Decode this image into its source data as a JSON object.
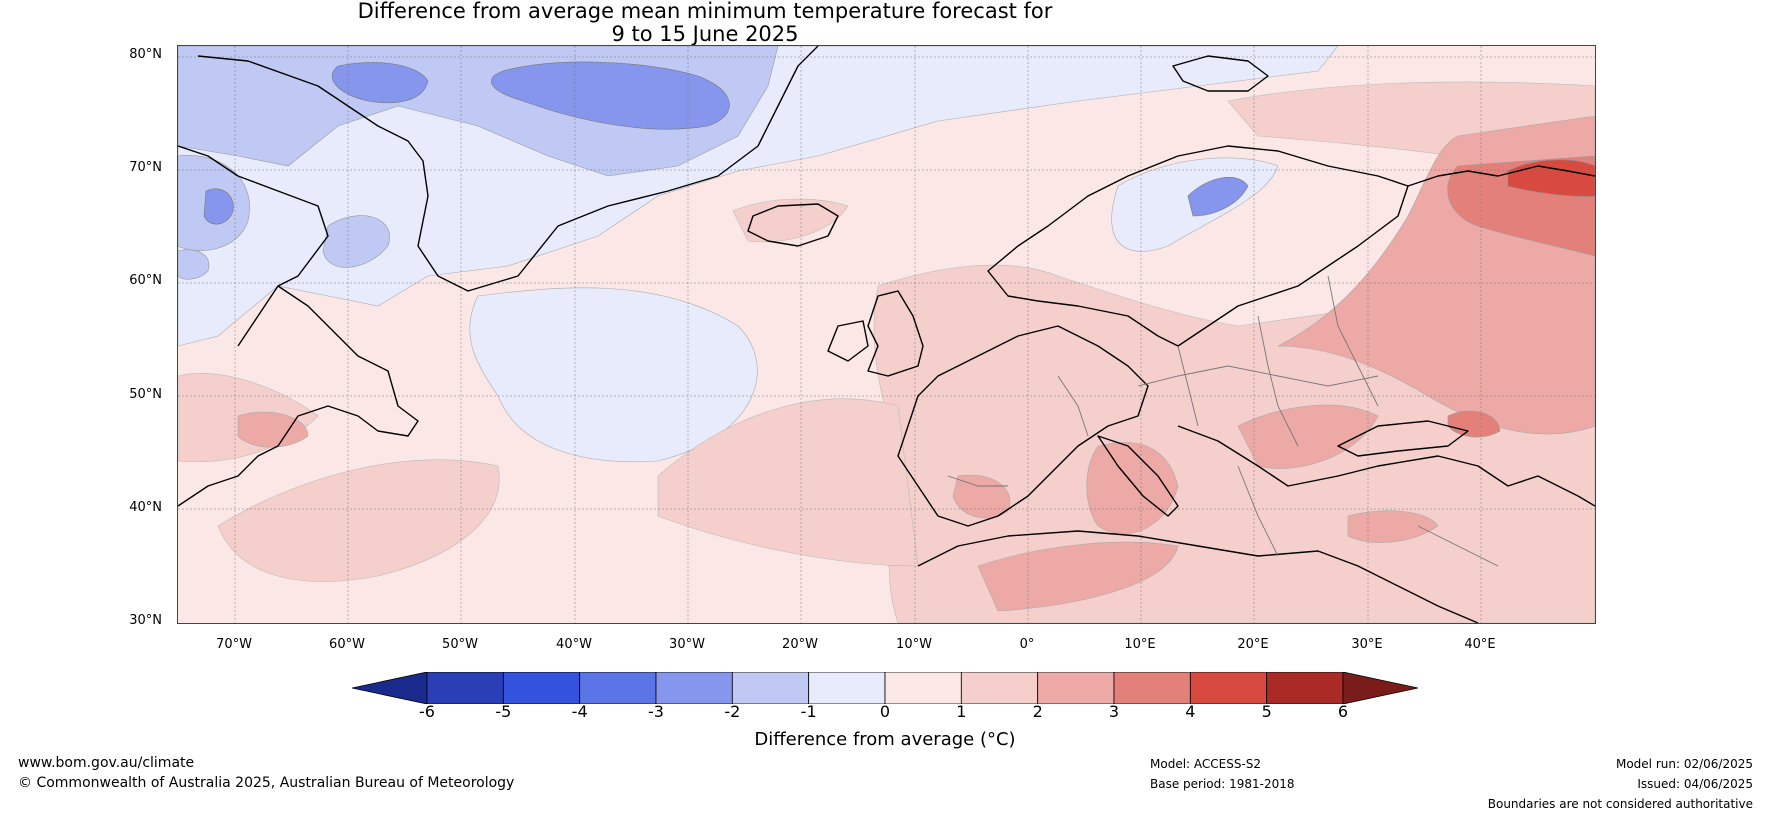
{
  "title": {
    "line1": "Difference from average mean minimum temperature forecast for",
    "line2": "9 to 15 June 2025"
  },
  "map": {
    "lat_labels": [
      "80°N",
      "70°N",
      "60°N",
      "50°N",
      "40°N",
      "30°N"
    ],
    "lon_labels": [
      "70°W",
      "60°W",
      "50°W",
      "40°W",
      "30°W",
      "20°W",
      "10°W",
      "0°",
      "10°E",
      "20°E",
      "30°E",
      "40°E"
    ],
    "lat_range": [
      30,
      81
    ],
    "lon_range": [
      -75,
      50
    ]
  },
  "colorbar": {
    "ticks": [
      "-6",
      "-5",
      "-4",
      "-3",
      "-2",
      "-1",
      "0",
      "1",
      "2",
      "3",
      "4",
      "5",
      "6"
    ],
    "colors": [
      "#1a2a8c",
      "#2a3fb5",
      "#3352dd",
      "#5b74e6",
      "#8596ec",
      "#c0c8f4",
      "#e8ebfb",
      "#fbe8e6",
      "#f4cfcc",
      "#eca9a6",
      "#e3807a",
      "#d84a40",
      "#aa2a25",
      "#7a1d1a"
    ],
    "label": "Difference from average (°C)"
  },
  "footer": {
    "website": "www.bom.gov.au/climate",
    "copyright": "© Commonwealth of Australia 2025, Australian Bureau of Meteorology",
    "model": "Model: ACCESS-S2",
    "base_period": "Base period: 1981-2018",
    "model_run": "Model run: 02/06/2025",
    "issued": "Issued: 04/06/2025",
    "disclaimer": "Boundaries are not considered authoritative"
  }
}
